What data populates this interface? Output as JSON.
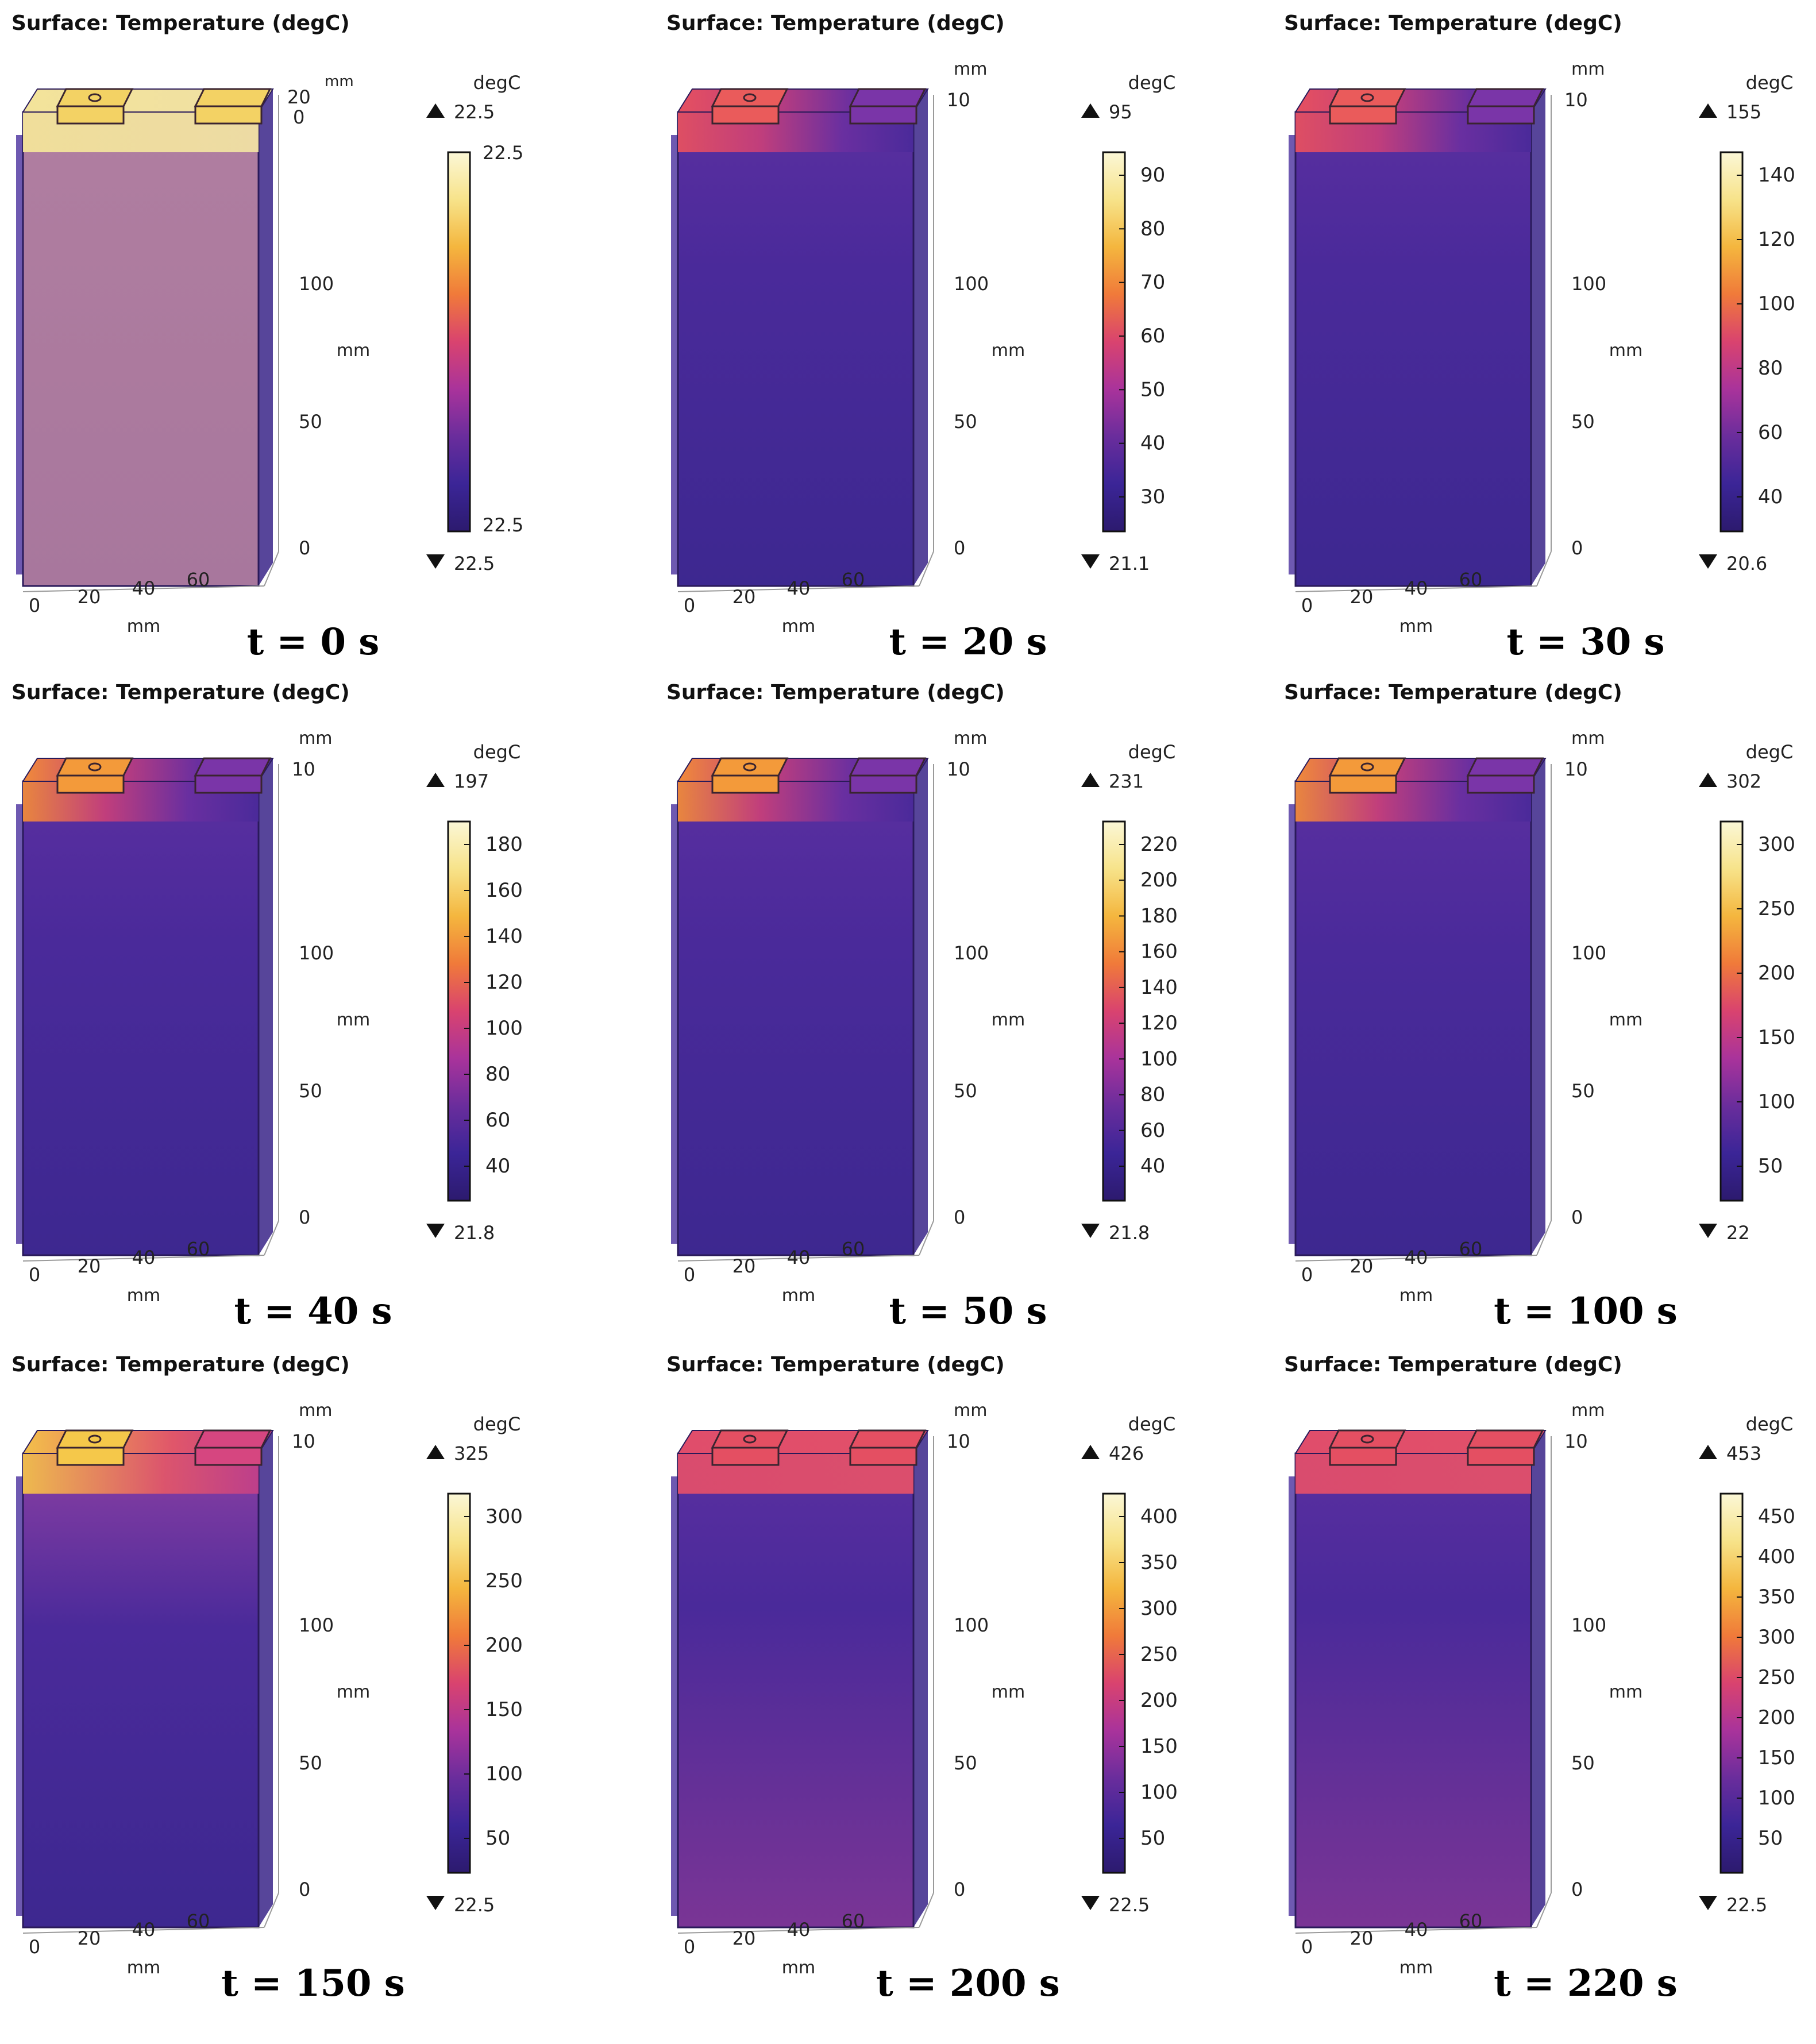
{
  "colormap": [
    "#2c1a6e",
    "#3b2597",
    "#6a2d9c",
    "#a9339b",
    "#d9436f",
    "#f07a3a",
    "#f4b63e",
    "#f7e38a",
    "#fbf7d6"
  ],
  "labels": {
    "mm": "mm",
    "unit": "degC"
  },
  "axis_ticks": {
    "x": [
      "0",
      "20",
      "40",
      "60"
    ],
    "z": [
      "0",
      "50",
      "100"
    ],
    "top_first": "20",
    "top_first_alt": "0",
    "top_other": "10"
  },
  "panels": [
    {
      "title": "Surface:  Temperature (degC)",
      "caption": "t = 0 s",
      "max_label": "22.5",
      "min_label": "22.5",
      "cb_top_value": "22.5",
      "cb_bottom_value": "22.5",
      "ticks": [],
      "heat": 0.0,
      "top_heat": 0.0,
      "uniform": true
    },
    {
      "title": "Surface:  Temperature (degC)",
      "caption": "t = 20 s",
      "max_label": "95",
      "min_label": "21.1",
      "cb_top_value": "",
      "cb_bottom_value": "",
      "ticks": [
        "90",
        "80",
        "70",
        "60",
        "50",
        "40",
        "30"
      ],
      "heat": 0.55,
      "top_heat": 0.45,
      "uniform": false
    },
    {
      "title": "Surface:  Temperature (degC)",
      "caption": "t = 30 s",
      "max_label": "155",
      "min_label": "20.6",
      "cb_top_value": "",
      "cb_bottom_value": "",
      "ticks": [
        "140",
        "120",
        "100",
        "80",
        "60",
        "40"
      ],
      "heat": 0.55,
      "top_heat": 0.45,
      "uniform": false
    },
    {
      "title": "Surface:  Temperature (degC)",
      "caption": "t = 40 s",
      "max_label": "197",
      "min_label": "21.8",
      "cb_top_value": "",
      "cb_bottom_value": "",
      "ticks": [
        "180",
        "160",
        "140",
        "120",
        "100",
        "80",
        "60",
        "40"
      ],
      "heat": 0.6,
      "top_heat": 0.5,
      "uniform": false
    },
    {
      "title": "Surface:  Temperature (degC)",
      "caption": "t = 50 s",
      "max_label": "231",
      "min_label": "21.8",
      "cb_top_value": "",
      "cb_bottom_value": "",
      "ticks": [
        "220",
        "200",
        "180",
        "160",
        "140",
        "120",
        "100",
        "80",
        "60",
        "40"
      ],
      "heat": 0.62,
      "top_heat": 0.5,
      "uniform": false
    },
    {
      "title": "Surface:  Temperature (degC)",
      "caption": "t = 100 s",
      "max_label": "302",
      "min_label": "22",
      "cb_top_value": "",
      "cb_bottom_value": "",
      "ticks": [
        "300",
        "250",
        "200",
        "150",
        "100",
        "50"
      ],
      "heat": 0.7,
      "top_heat": 0.55,
      "uniform": false
    },
    {
      "title": "Surface:  Temperature (degC)",
      "caption": "t = 150 s",
      "max_label": "325",
      "min_label": "22.5",
      "cb_top_value": "",
      "cb_bottom_value": "",
      "ticks": [
        "300",
        "250",
        "200",
        "150",
        "100",
        "50"
      ],
      "heat": 0.78,
      "top_heat": 0.7,
      "uniform": false
    },
    {
      "title": "Surface:  Temperature (degC)",
      "caption": "t = 200 s",
      "max_label": "426",
      "min_label": "22.5",
      "cb_top_value": "",
      "cb_bottom_value": "",
      "ticks": [
        "400",
        "350",
        "300",
        "250",
        "200",
        "150",
        "100",
        "50"
      ],
      "heat": 0.5,
      "top_heat": 0.5,
      "uniform": false
    },
    {
      "title": "Surface:  Temperature (degC)",
      "caption": "t = 220 s",
      "max_label": "453",
      "min_label": "22.5",
      "cb_top_value": "",
      "cb_bottom_value": "",
      "ticks": [
        "450",
        "400",
        "350",
        "300",
        "250",
        "200",
        "150",
        "100",
        "50"
      ],
      "heat": 0.48,
      "top_heat": 0.48,
      "uniform": false
    }
  ]
}
